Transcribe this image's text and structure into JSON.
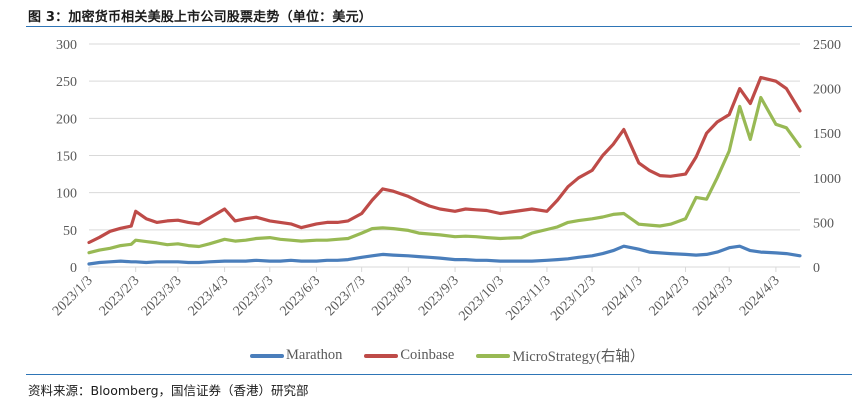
{
  "figure": {
    "title": "图 3：加密货币相关美股上市公司股票走势（单位：美元）",
    "source": "资料来源：Bloomberg，国信证券（香港）研究部"
  },
  "legend": [
    {
      "label": "Marathon",
      "color": "#4a7ebb"
    },
    {
      "label": "Coinbase",
      "color": "#be4b48"
    },
    {
      "label": "MicroStrategy(右轴）",
      "color": "#98b954"
    }
  ],
  "chart_data": {
    "type": "line",
    "title": "加密货币相关美股上市公司股票走势（单位：美元）",
    "xlabel": "",
    "ylabel": "美元",
    "y_left": {
      "ticks": [
        0,
        50,
        100,
        150,
        200,
        250,
        300
      ],
      "range": [
        0,
        300
      ]
    },
    "y_right": {
      "ticks": [
        0,
        500,
        1000,
        1500,
        2000,
        2500
      ],
      "range": [
        0,
        2500
      ]
    },
    "x_tick_labels": [
      "2023/1/3",
      "2023/2/3",
      "2023/3/3",
      "2023/4/3",
      "2023/5/3",
      "2023/6/3",
      "2023/7/3",
      "2023/8/3",
      "2023/9/3",
      "2023/10/3",
      "2023/11/3",
      "2023/12/3",
      "2024/1/3",
      "2024/2/3",
      "2024/3/3",
      "2024/4/3"
    ],
    "x_range": [
      "2023/1/3",
      "2024/4/19"
    ],
    "grid": true,
    "legend_position": "bottom",
    "x": [
      "2023/1/3",
      "2023/1/10",
      "2023/1/17",
      "2023/1/24",
      "2023/1/31",
      "2023/2/3",
      "2023/2/10",
      "2023/2/17",
      "2023/2/24",
      "2023/3/3",
      "2023/3/10",
      "2023/3/17",
      "2023/3/24",
      "2023/4/3",
      "2023/4/10",
      "2023/4/17",
      "2023/4/24",
      "2023/5/3",
      "2023/5/10",
      "2023/5/17",
      "2023/5/24",
      "2023/6/3",
      "2023/6/10",
      "2023/6/17",
      "2023/6/24",
      "2023/7/3",
      "2023/7/10",
      "2023/7/17",
      "2023/7/24",
      "2023/8/3",
      "2023/8/10",
      "2023/8/17",
      "2023/8/24",
      "2023/9/3",
      "2023/9/10",
      "2023/9/17",
      "2023/9/24",
      "2023/10/3",
      "2023/10/10",
      "2023/10/17",
      "2023/10/24",
      "2023/11/3",
      "2023/11/10",
      "2023/11/17",
      "2023/11/24",
      "2023/12/3",
      "2023/12/10",
      "2023/12/17",
      "2023/12/24",
      "2024/1/3",
      "2024/1/10",
      "2024/1/17",
      "2024/1/24",
      "2024/2/3",
      "2024/2/10",
      "2024/2/17",
      "2024/2/24",
      "2024/3/3",
      "2024/3/10",
      "2024/3/17",
      "2024/3/24",
      "2024/4/3",
      "2024/4/10",
      "2024/4/19"
    ],
    "series": [
      {
        "name": "Marathon",
        "axis": "left",
        "color": "#4a7ebb",
        "values": [
          4,
          6,
          7,
          8,
          7,
          7,
          6,
          7,
          7,
          7,
          6,
          6,
          7,
          8,
          8,
          8,
          9,
          8,
          8,
          9,
          8,
          8,
          9,
          9,
          10,
          13,
          15,
          17,
          16,
          15,
          14,
          13,
          12,
          10,
          10,
          9,
          9,
          8,
          8,
          8,
          8,
          9,
          10,
          11,
          13,
          15,
          18,
          22,
          28,
          24,
          20,
          19,
          18,
          17,
          16,
          17,
          20,
          26,
          28,
          22,
          20,
          19,
          18,
          15
        ]
      },
      {
        "name": "Coinbase",
        "axis": "left",
        "color": "#be4b48",
        "values": [
          33,
          40,
          48,
          52,
          55,
          75,
          65,
          60,
          62,
          63,
          60,
          58,
          66,
          78,
          62,
          65,
          67,
          62,
          60,
          58,
          53,
          58,
          60,
          60,
          62,
          72,
          90,
          105,
          102,
          95,
          88,
          82,
          78,
          75,
          78,
          77,
          76,
          72,
          74,
          76,
          78,
          75,
          90,
          108,
          120,
          130,
          150,
          165,
          185,
          140,
          130,
          123,
          122,
          125,
          148,
          180,
          195,
          205,
          240,
          220,
          255,
          250,
          240,
          210
        ]
      },
      {
        "name": "MicroStrategy(右轴）",
        "axis": "right",
        "color": "#98b954",
        "values": [
          160,
          190,
          210,
          240,
          255,
          300,
          285,
          270,
          250,
          260,
          240,
          230,
          260,
          310,
          290,
          300,
          320,
          330,
          310,
          300,
          290,
          300,
          300,
          310,
          320,
          380,
          430,
          440,
          430,
          410,
          380,
          370,
          360,
          340,
          345,
          340,
          330,
          320,
          325,
          330,
          380,
          420,
          450,
          500,
          520,
          540,
          560,
          590,
          600,
          480,
          470,
          460,
          480,
          540,
          780,
          760,
          1000,
          1300,
          1800,
          1430,
          1900,
          1600,
          1560,
          1350
        ]
      }
    ]
  }
}
